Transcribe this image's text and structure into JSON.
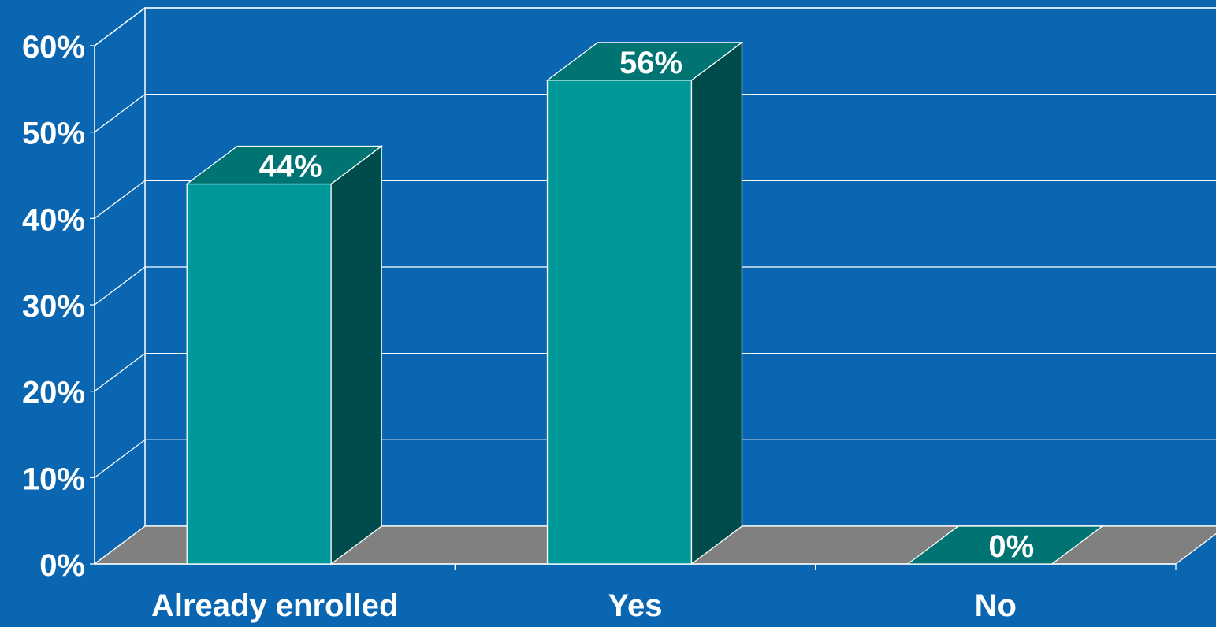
{
  "chart_data": {
    "type": "bar",
    "title": "",
    "xlabel": "",
    "ylabel": "",
    "categories": [
      "Already enrolled",
      "Yes",
      "No"
    ],
    "values": [
      44,
      56,
      0
    ],
    "value_labels": [
      "44%",
      "56%",
      "0%"
    ],
    "ylim": [
      0,
      60
    ],
    "yticks": [
      0,
      10,
      20,
      30,
      40,
      50,
      60
    ],
    "ytick_labels": [
      "0%",
      "10%",
      "20%",
      "30%",
      "40%",
      "50%",
      "60%"
    ],
    "grid": true,
    "three_d": true,
    "legend": "none"
  },
  "colors": {
    "background": "#0a66b0",
    "plot_wall": "#0a66b0",
    "floor": "#808080",
    "bar_front": "#009999",
    "bar_top": "#007373",
    "bar_side": "#004c4c",
    "lines": "#ffffff"
  }
}
